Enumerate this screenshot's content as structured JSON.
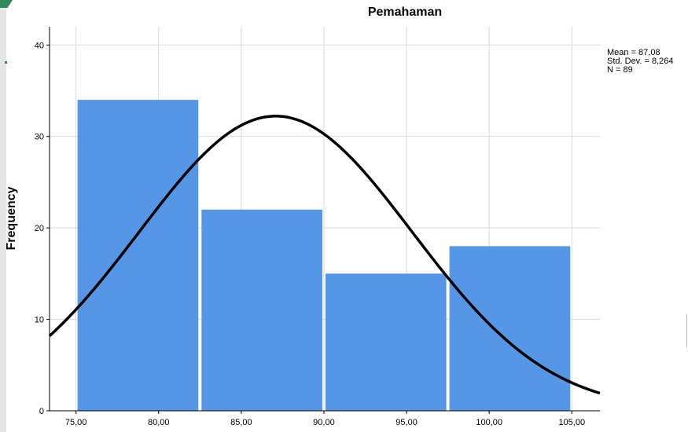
{
  "chart_data": {
    "type": "bar",
    "title": "Pemahaman",
    "xlabel": "",
    "ylabel": "Frequency",
    "bins": [
      {
        "from": 75,
        "to": 82.5,
        "value": 34
      },
      {
        "from": 82.5,
        "to": 90,
        "value": 22
      },
      {
        "from": 90,
        "to": 97.5,
        "value": 15
      },
      {
        "from": 97.5,
        "to": 105,
        "value": 18
      }
    ],
    "xlim": [
      73.4,
      106.7
    ],
    "ylim": [
      0,
      42
    ],
    "x_ticks": [
      "75,00",
      "80,00",
      "85,00",
      "90,00",
      "95,00",
      "100,00",
      "105,00"
    ],
    "x_tick_values": [
      75,
      80,
      85,
      90,
      95,
      100,
      105
    ],
    "y_ticks": [
      0,
      10,
      20,
      30,
      40
    ],
    "normal_curve": {
      "mean": 87.08,
      "std": 8.264,
      "n": 89
    },
    "grid": true,
    "bar_color": "#5596e6",
    "curve_color": "#000000",
    "stats": {
      "mean": "Mean = 87,08",
      "std": "Std. Dev. = 8,264",
      "n": "N = 89"
    }
  }
}
